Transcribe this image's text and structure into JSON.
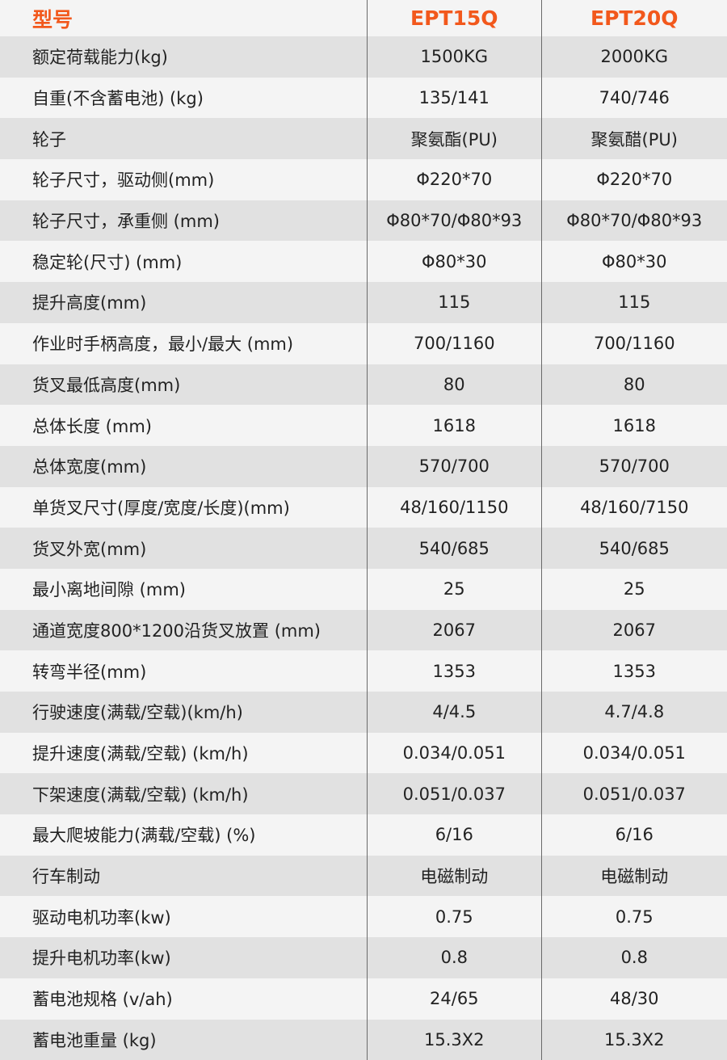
{
  "header": {
    "label": "型号",
    "models": [
      "EPT15Q",
      "EPT20Q"
    ]
  },
  "colors": {
    "accent": "#f2581c",
    "row_alt": "#e1e1e1",
    "row_plain": "#f4f4f4"
  },
  "rows": [
    {
      "label": "额定荷载能力(kg)",
      "v1": "1500KG",
      "v2": "2000KG"
    },
    {
      "label": "自重(不含蓄电池) (kg)",
      "v1": "135/141",
      "v2": "740/746"
    },
    {
      "label": "轮子",
      "v1": "聚氨酯(PU)",
      "v2": "聚氨醋(PU)"
    },
    {
      "label": "轮子尺寸，驱动侧(mm)",
      "v1": "Φ220*70",
      "v2": "Φ220*70"
    },
    {
      "label": "轮子尺寸，承重侧 (mm)",
      "v1": "Φ80*70/Φ80*93",
      "v2": "Φ80*70/Φ80*93"
    },
    {
      "label": "稳定轮(尺寸) (mm)",
      "v1": "Φ80*30",
      "v2": "Φ80*30"
    },
    {
      "label": "提升高度(mm)",
      "v1": "115",
      "v2": "115"
    },
    {
      "label": "作业时手柄高度，最小/最大 (mm)",
      "v1": "700/1160",
      "v2": "700/1160"
    },
    {
      "label": "货叉最低高度(mm)",
      "v1": "80",
      "v2": "80"
    },
    {
      "label": "总体长度 (mm)",
      "v1": "1618",
      "v2": "1618"
    },
    {
      "label": "总体宽度(mm)",
      "v1": "570/700",
      "v2": "570/700"
    },
    {
      "label": "单货叉尺寸(厚度/宽度/长度)(mm)",
      "v1": "48/160/1150",
      "v2": "48/160/7150"
    },
    {
      "label": "货叉外宽(mm)",
      "v1": "540/685",
      "v2": "540/685"
    },
    {
      "label": "最小离地间隙 (mm)",
      "v1": "25",
      "v2": "25"
    },
    {
      "label": "通道宽度800*1200沿货叉放置 (mm)",
      "v1": "2067",
      "v2": "2067"
    },
    {
      "label": "转弯半径(mm)",
      "v1": "1353",
      "v2": "1353"
    },
    {
      "label": "行驶速度(满载/空载)(km/h)",
      "v1": "4/4.5",
      "v2": "4.7/4.8"
    },
    {
      "label": "提升速度(满载/空载) (km/h)",
      "v1": "0.034/0.051",
      "v2": "0.034/0.051"
    },
    {
      "label": "下架速度(满载/空载) (km/h)",
      "v1": "0.051/0.037",
      "v2": "0.051/0.037"
    },
    {
      "label": "最大爬坡能力(满载/空载) (%)",
      "v1": "6/16",
      "v2": "6/16"
    },
    {
      "label": "行车制动",
      "v1": "电磁制动",
      "v2": "电磁制动"
    },
    {
      "label": "驱动电机功率(kw)",
      "v1": "0.75",
      "v2": "0.75"
    },
    {
      "label": "提升电机功率(kw)",
      "v1": "0.8",
      "v2": "0.8"
    },
    {
      "label": "蓄电池规格 (v/ah)",
      "v1": "24/65",
      "v2": "48/30"
    },
    {
      "label": "蓄电池重量 (kg)",
      "v1": "15.3X2",
      "v2": "15.3X2"
    }
  ]
}
